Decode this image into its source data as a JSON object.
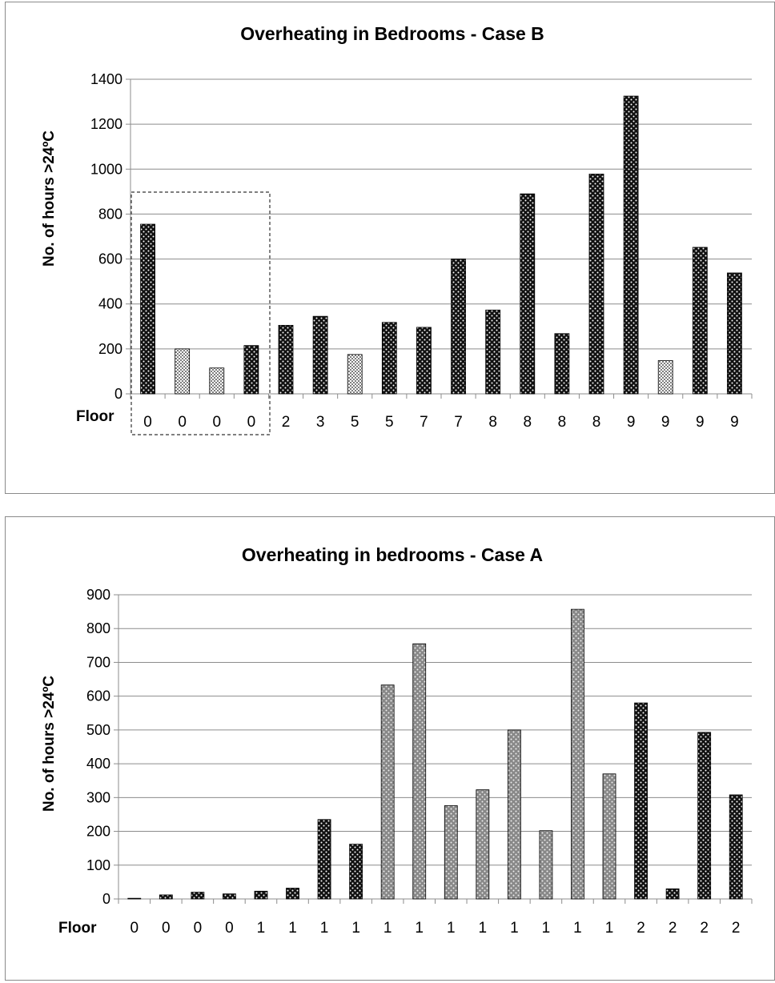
{
  "chart_data": [
    {
      "type": "bar",
      "title": "Overheating in Bedrooms - Case B",
      "ylabel": "No. of hours >24ºC",
      "xlabel": "Floor",
      "ylim": [
        0,
        1400
      ],
      "yticks": [
        0,
        200,
        400,
        600,
        800,
        1000,
        1200,
        1400
      ],
      "grid": true,
      "legend": "none",
      "categories": [
        "0",
        "0",
        "0",
        "0",
        "2",
        "3",
        "5",
        "5",
        "7",
        "7",
        "8",
        "8",
        "8",
        "8",
        "9",
        "9",
        "9",
        "9"
      ],
      "values": [
        755,
        200,
        115,
        215,
        305,
        345,
        175,
        318,
        296,
        600,
        373,
        890,
        268,
        978,
        1325,
        148,
        652,
        538
      ],
      "patterns": [
        "dark",
        "light",
        "light",
        "dark",
        "dark",
        "dark",
        "light",
        "dark",
        "dark",
        "dark",
        "dark",
        "dark",
        "dark",
        "dark",
        "dark",
        "light",
        "dark",
        "dark"
      ],
      "annotation": "dashed box around the four floor 0 bars"
    },
    {
      "type": "bar",
      "title": "Overheating in bedrooms - Case A",
      "ylabel": "No. of hours >24ºC",
      "xlabel": "Floor",
      "ylim": [
        0,
        900
      ],
      "yticks": [
        0,
        100,
        200,
        300,
        400,
        500,
        600,
        700,
        800,
        900
      ],
      "grid": true,
      "legend": "none",
      "categories": [
        "0",
        "0",
        "0",
        "0",
        "1",
        "1",
        "1",
        "1",
        "1",
        "1",
        "1",
        "1",
        "1",
        "1",
        "1",
        "1",
        "2",
        "2",
        "2",
        "2"
      ],
      "values": [
        2,
        12,
        20,
        15,
        23,
        32,
        235,
        162,
        633,
        755,
        276,
        323,
        500,
        202,
        857,
        370,
        580,
        30,
        493,
        308
      ],
      "patterns": [
        "dark",
        "dark",
        "dark",
        "dark",
        "dark",
        "dark",
        "dark",
        "dark",
        "gray",
        "gray",
        "gray",
        "gray",
        "gray",
        "gray",
        "gray",
        "gray",
        "dark",
        "dark",
        "dark",
        "dark"
      ]
    }
  ],
  "colors": {
    "dark_bar": "#111111",
    "light_bar": "#d9d9d9",
    "gray_bar": "#8c8c8c",
    "grid": "#8c8c8c"
  }
}
